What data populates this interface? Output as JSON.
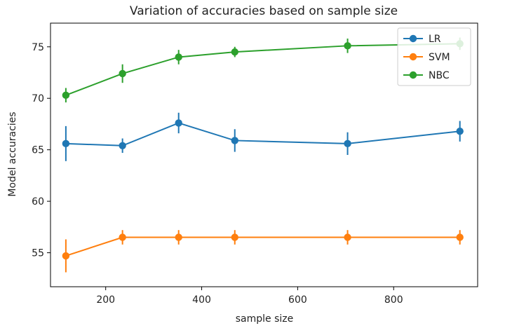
{
  "chart_data": {
    "type": "line",
    "title": "Variation of accuracies based on sample size",
    "xlabel": "sample size",
    "ylabel": "Model accuracies",
    "xlim": [
      85,
      975
    ],
    "ylim": [
      51.7,
      77.3
    ],
    "xticks": [
      200,
      400,
      600,
      800
    ],
    "yticks": [
      55,
      60,
      65,
      70,
      75
    ],
    "grid": false,
    "legend_position": "top-right",
    "x": [
      117,
      235,
      352,
      469,
      704,
      938
    ],
    "series": [
      {
        "name": "LR",
        "color": "#1f77b4",
        "values": [
          65.6,
          65.4,
          67.6,
          65.9,
          65.6,
          66.8
        ],
        "errors": [
          1.7,
          0.7,
          1.0,
          1.1,
          1.1,
          1.0
        ]
      },
      {
        "name": "SVM",
        "color": "#ff7f0e",
        "values": [
          54.7,
          56.5,
          56.5,
          56.5,
          56.5,
          56.5
        ],
        "errors": [
          1.6,
          0.7,
          0.7,
          0.7,
          0.7,
          0.7
        ]
      },
      {
        "name": "NBC",
        "color": "#2ca02c",
        "values": [
          70.3,
          72.4,
          74.0,
          74.5,
          75.1,
          75.3
        ],
        "errors": [
          0.7,
          0.9,
          0.7,
          0.5,
          0.7,
          0.6
        ]
      }
    ]
  }
}
